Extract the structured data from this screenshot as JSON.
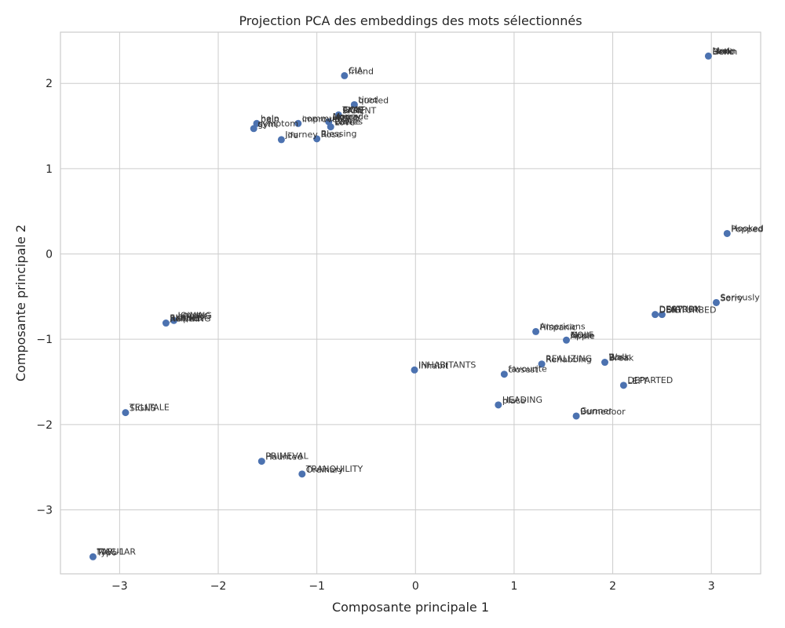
{
  "chart_data": {
    "type": "scatter",
    "title": "Projection PCA des embeddings des mots sélectionnés",
    "xlabel": "Composante principale 1",
    "ylabel": "Composante principale 2",
    "xlim": [
      -3.6,
      3.5
    ],
    "ylim": [
      -3.75,
      2.6
    ],
    "xticks": [
      -3,
      -2,
      -1,
      0,
      1,
      2,
      3
    ],
    "yticks": [
      -3,
      -2,
      -1,
      0,
      1,
      2
    ],
    "grid": true,
    "color": "#4c72b0",
    "points": [
      {
        "x": 2.97,
        "y": 2.32,
        "labels": [
          "Moon",
          "Berlin",
          "Look",
          "Hello"
        ]
      },
      {
        "x": -0.72,
        "y": 2.09,
        "labels": [
          "CIA",
          "friend"
        ]
      },
      {
        "x": -0.62,
        "y": 1.75,
        "labels": [
          "tired",
          "quoted"
        ]
      },
      {
        "x": -0.78,
        "y": 1.63,
        "labels": [
          "TIME",
          "PARENT",
          "GOLF",
          "SIGN"
        ]
      },
      {
        "x": -0.88,
        "y": 1.55,
        "labels": [
          "Money",
          "Home",
          "upgrade"
        ]
      },
      {
        "x": -0.86,
        "y": 1.49,
        "labels": [
          "Battle",
          "Love",
          "Waves"
        ]
      },
      {
        "x": -1.19,
        "y": 1.53,
        "labels": [
          "community",
          "improve"
        ]
      },
      {
        "x": -1.61,
        "y": 1.53,
        "labels": [
          "help",
          "pain"
        ]
      },
      {
        "x": -1.64,
        "y": 1.47,
        "labels": [
          "symptom",
          "gym"
        ]
      },
      {
        "x": -1.36,
        "y": 1.34,
        "labels": [
          "journey",
          "life"
        ]
      },
      {
        "x": -1.0,
        "y": 1.35,
        "labels": [
          "Blessing",
          "Rose"
        ]
      },
      {
        "x": 3.16,
        "y": 0.24,
        "labels": [
          "Hooked",
          "Popped"
        ]
      },
      {
        "x": 3.05,
        "y": -0.57,
        "labels": [
          "Seriously",
          "Sorry"
        ]
      },
      {
        "x": 2.43,
        "y": -0.71,
        "labels": [
          "DESTROY",
          "DENY"
        ]
      },
      {
        "x": 2.5,
        "y": -0.71,
        "labels": [
          "SATURN",
          "DISTURBED"
        ]
      },
      {
        "x": -2.53,
        "y": -0.81,
        "labels": [
          "SKIING",
          "RUNNING",
          "jumped",
          "helped"
        ]
      },
      {
        "x": -2.45,
        "y": -0.78,
        "labels": [
          "JOINING",
          "LOVING"
        ]
      },
      {
        "x": 1.22,
        "y": -0.91,
        "labels": [
          "Americans",
          "Hispanic"
        ]
      },
      {
        "x": 1.53,
        "y": -1.01,
        "labels": [
          "GOLF",
          "Apple",
          "Mode"
        ]
      },
      {
        "x": 1.28,
        "y": -1.29,
        "labels": [
          "REALIZING",
          "Rehabbing"
        ]
      },
      {
        "x": 1.92,
        "y": -1.27,
        "labels": [
          "Walk",
          "Break",
          "Boss"
        ]
      },
      {
        "x": -0.01,
        "y": -1.36,
        "labels": [
          "INHABITANTS",
          "Inhabit"
        ]
      },
      {
        "x": 0.9,
        "y": -1.41,
        "labels": [
          "favourite",
          "closest"
        ]
      },
      {
        "x": 2.11,
        "y": -1.54,
        "labels": [
          "DEPARTED",
          "LEFT"
        ]
      },
      {
        "x": 0.84,
        "y": -1.77,
        "labels": [
          "HEADING",
          "place"
        ]
      },
      {
        "x": 1.63,
        "y": -1.9,
        "labels": [
          "Gunner",
          "Burnedoor"
        ]
      },
      {
        "x": -2.94,
        "y": -1.86,
        "labels": [
          "TELLTALE",
          "SIGNS"
        ]
      },
      {
        "x": -1.56,
        "y": -2.43,
        "labels": [
          "PRIMEVAL",
          "Haunted"
        ]
      },
      {
        "x": -1.15,
        "y": -2.58,
        "labels": [
          "TRANQUILITY",
          "Ordinary"
        ]
      },
      {
        "x": -3.27,
        "y": -3.55,
        "labels": [
          "TAPULAR",
          "Typo",
          "MAC-1"
        ]
      }
    ]
  }
}
